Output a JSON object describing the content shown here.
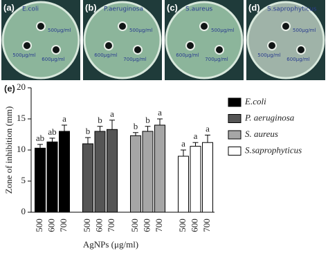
{
  "panels": [
    {
      "label": "(a)",
      "organism": "E.coli",
      "wells": [
        "500μg/ml",
        "500μg/ml",
        "600μg/ml"
      ]
    },
    {
      "label": "(b)",
      "organism": "P.aeruginosa",
      "wells": [
        "500μg/ml",
        "600μg/ml",
        "700μg/ml"
      ]
    },
    {
      "label": "(c)",
      "organism": "S.aureus",
      "wells": [
        "500μg/ml",
        "600μg/ml",
        "700μg/ml"
      ]
    },
    {
      "label": "(d)",
      "organism": "S.saprophyticus",
      "wells": [
        "500μg/ml",
        "500μg/ml",
        "600μg/ml"
      ]
    }
  ],
  "chart_data": {
    "type": "bar",
    "panel_label": "(e)",
    "y_label": "Zone of inhibition (mm)",
    "x_label": "AgNPs (μg/ml)",
    "categories": [
      "500",
      "600",
      "700"
    ],
    "ylim": [
      0,
      20
    ],
    "yticks": [
      0,
      5,
      10,
      15,
      20
    ],
    "series": [
      {
        "name": "E.coli",
        "color": "#000000",
        "values": [
          10.3,
          11.3,
          13
        ],
        "errors": [
          0.6,
          0.6,
          1
        ],
        "letters": [
          "ab",
          "ab",
          "a"
        ]
      },
      {
        "name": "P. aeruginosa",
        "color": "#555555",
        "values": [
          11,
          13,
          13.3
        ],
        "errors": [
          1,
          0.8,
          1.5
        ],
        "letters": [
          "b",
          "b",
          "a"
        ]
      },
      {
        "name": "S. aureus",
        "color": "#a6a6a6",
        "values": [
          12.3,
          13,
          14
        ],
        "errors": [
          0.5,
          0.8,
          1
        ],
        "letters": [
          "b",
          "b",
          "a"
        ]
      },
      {
        "name": "S.saprophyticus",
        "color": "#ffffff",
        "values": [
          9,
          10.6,
          11.2
        ],
        "errors": [
          1,
          0.6,
          1.2
        ],
        "letters": [
          "a",
          "a",
          "a"
        ]
      }
    ]
  }
}
